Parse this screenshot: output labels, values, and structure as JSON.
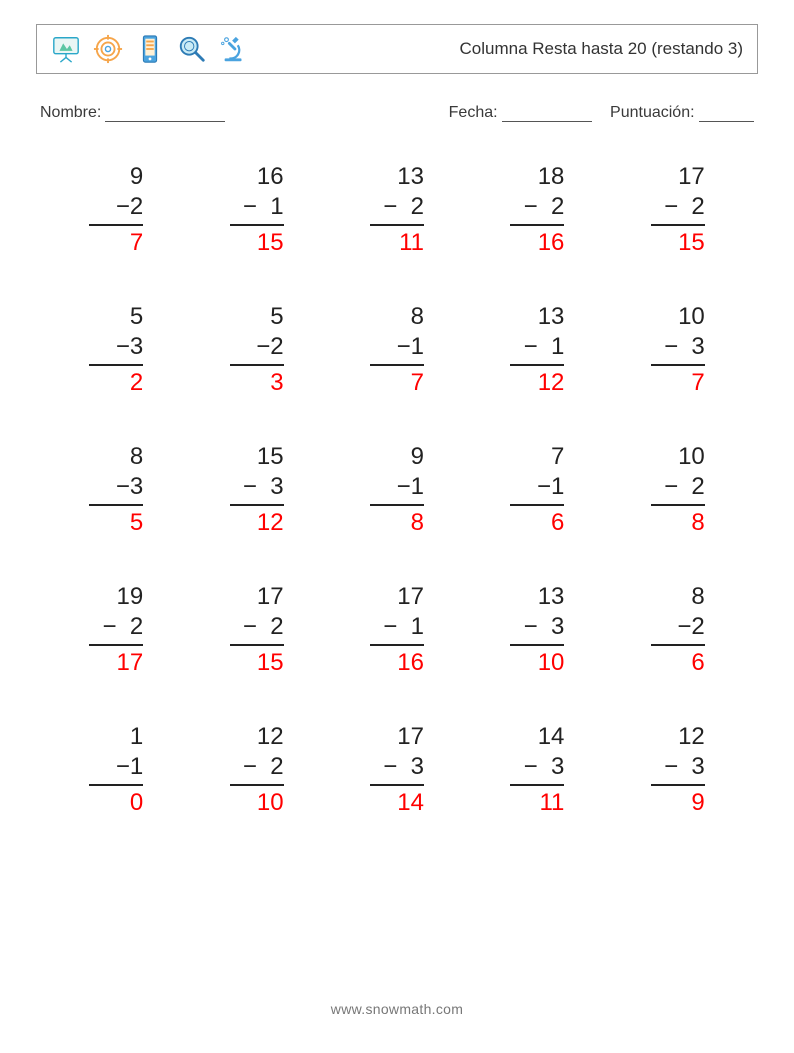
{
  "header": {
    "title": "Columna Resta hasta 20 (restando 3)",
    "icons": [
      "slideshow-icon",
      "target-icon",
      "phone-icon",
      "magnifier-icon",
      "microscope-icon"
    ]
  },
  "meta": {
    "name_label": "Nombre:",
    "date_label": "Fecha:",
    "score_label": "Puntuación:"
  },
  "style": {
    "page_bg": "#ffffff",
    "text_color": "#222222",
    "answer_color": "#ff0000",
    "border_color": "#999999",
    "font_size_problem": 24,
    "font_size_title": 17,
    "font_size_meta": 16,
    "columns": 5,
    "rows": 5,
    "minus_sign": "−"
  },
  "problems": [
    {
      "a": 9,
      "b": 2,
      "ans": 7
    },
    {
      "a": 16,
      "b": 1,
      "ans": 15
    },
    {
      "a": 13,
      "b": 2,
      "ans": 11
    },
    {
      "a": 18,
      "b": 2,
      "ans": 16
    },
    {
      "a": 17,
      "b": 2,
      "ans": 15
    },
    {
      "a": 5,
      "b": 3,
      "ans": 2
    },
    {
      "a": 5,
      "b": 2,
      "ans": 3
    },
    {
      "a": 8,
      "b": 1,
      "ans": 7
    },
    {
      "a": 13,
      "b": 1,
      "ans": 12
    },
    {
      "a": 10,
      "b": 3,
      "ans": 7
    },
    {
      "a": 8,
      "b": 3,
      "ans": 5
    },
    {
      "a": 15,
      "b": 3,
      "ans": 12
    },
    {
      "a": 9,
      "b": 1,
      "ans": 8
    },
    {
      "a": 7,
      "b": 1,
      "ans": 6
    },
    {
      "a": 10,
      "b": 2,
      "ans": 8
    },
    {
      "a": 19,
      "b": 2,
      "ans": 17
    },
    {
      "a": 17,
      "b": 2,
      "ans": 15
    },
    {
      "a": 17,
      "b": 1,
      "ans": 16
    },
    {
      "a": 13,
      "b": 3,
      "ans": 10
    },
    {
      "a": 8,
      "b": 2,
      "ans": 6
    },
    {
      "a": 1,
      "b": 1,
      "ans": 0
    },
    {
      "a": 12,
      "b": 2,
      "ans": 10
    },
    {
      "a": 17,
      "b": 3,
      "ans": 14
    },
    {
      "a": 14,
      "b": 3,
      "ans": 11
    },
    {
      "a": 12,
      "b": 3,
      "ans": 9
    }
  ],
  "footer": "www.snowmath.com"
}
